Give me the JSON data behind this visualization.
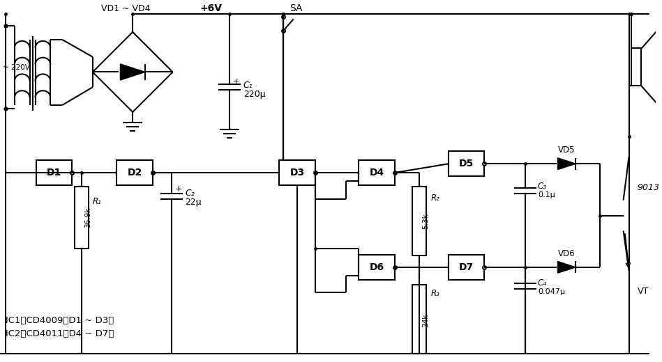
{
  "bg_color": "#ffffff",
  "lc": "#000000",
  "lw": 1.5,
  "labels": {
    "vd1_vd4": "VD1 ~ VD4",
    "plus6v": "+6V",
    "sa": "SA",
    "c1_sym": "C₁",
    "c1_val": "220μ",
    "r1_sym": "R₁",
    "r1_val": "36.9k",
    "c2_sym": "C₂",
    "c2_val": "22μ",
    "r2_sym": "R₂",
    "r2_val": "5.3k",
    "c3_sym": "C₃",
    "c3_val": "0.1μ",
    "r3_sym": "R₃",
    "r3_val": "24k",
    "c4_sym": "C₄",
    "c4_val": "0.047μ",
    "vd5": "VD5",
    "vd6": "VD6",
    "vt": "VT",
    "tr9013": "9013",
    "d1": "D1",
    "d2": "D2",
    "d3": "D3",
    "d4": "D4",
    "d5": "D5",
    "d6": "D6",
    "d7": "D7",
    "ic1": "IC1：CD4009（D1 ~ D3）",
    "ic2": "IC2：CD4011（D4 ~ D7）",
    "v220": "~ 220V"
  }
}
